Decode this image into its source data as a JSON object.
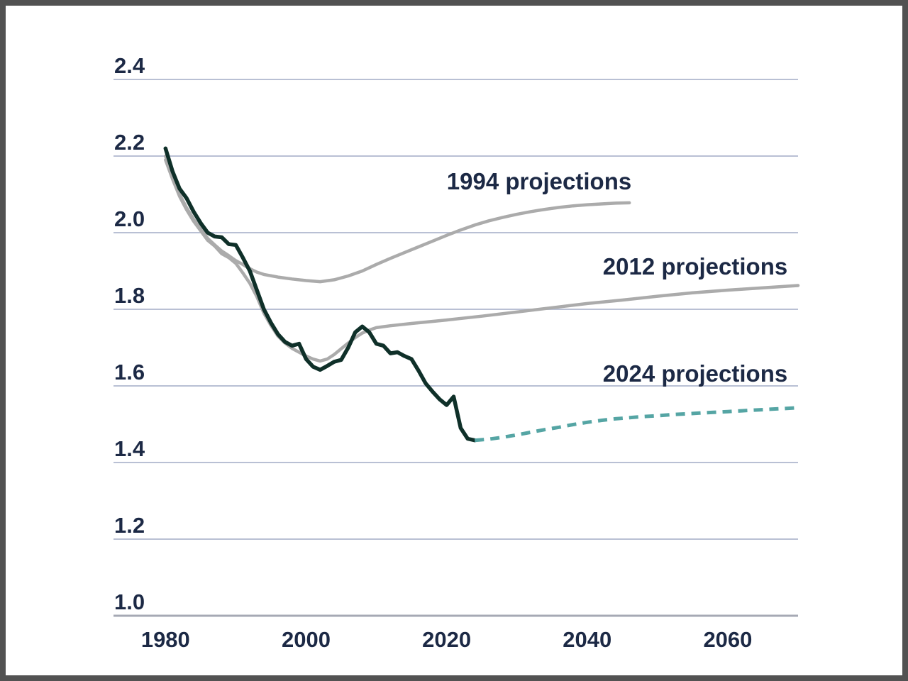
{
  "frame": {
    "border_color": "#525252",
    "background_color": "#ffffff"
  },
  "colors": {
    "text": "#1c2945",
    "gridline": "#b9c0d4",
    "axis_line": "#a6a9b4",
    "actual_line": "#0f3029",
    "projection_gray": "#ababab",
    "projection_teal": "#55a5a4"
  },
  "chart_data": {
    "type": "line",
    "title": "",
    "xlabel": "",
    "ylabel": "",
    "x_axis": {
      "tick_labels": [
        "1980",
        "2000",
        "2020",
        "2040",
        "2060"
      ],
      "tick_values": [
        1980,
        2000,
        2020,
        2040,
        2060
      ],
      "range": [
        1972.6,
        2070
      ],
      "grid": false
    },
    "y_axis": {
      "tick_labels": [
        "1.0",
        "1.2",
        "1.4",
        "1.6",
        "1.8",
        "2.0",
        "2.2",
        "2.4"
      ],
      "tick_values": [
        1.0,
        1.2,
        1.4,
        1.6,
        1.8,
        2.0,
        2.2,
        2.4
      ],
      "range": [
        1.0,
        2.4
      ],
      "grid": true
    },
    "legend_position": "inline-annotations",
    "series": [
      {
        "name": "actual",
        "label": "",
        "color": "#0f3029",
        "width": 5.5,
        "dash": "",
        "points": [
          [
            1980,
            2.22
          ],
          [
            1981,
            2.16
          ],
          [
            1982,
            2.115
          ],
          [
            1983,
            2.09
          ],
          [
            1984,
            2.055
          ],
          [
            1985,
            2.025
          ],
          [
            1986,
            2.0
          ],
          [
            1987,
            1.99
          ],
          [
            1988,
            1.988
          ],
          [
            1989,
            1.97
          ],
          [
            1990,
            1.968
          ],
          [
            1991,
            1.935
          ],
          [
            1992,
            1.9
          ],
          [
            1993,
            1.85
          ],
          [
            1994,
            1.8
          ],
          [
            1995,
            1.765
          ],
          [
            1996,
            1.735
          ],
          [
            1997,
            1.715
          ],
          [
            1998,
            1.705
          ],
          [
            1999,
            1.71
          ],
          [
            2000,
            1.67
          ],
          [
            2001,
            1.65
          ],
          [
            2002,
            1.642
          ],
          [
            2003,
            1.652
          ],
          [
            2004,
            1.663
          ],
          [
            2005,
            1.668
          ],
          [
            2006,
            1.7
          ],
          [
            2007,
            1.74
          ],
          [
            2008,
            1.755
          ],
          [
            2009,
            1.74
          ],
          [
            2010,
            1.71
          ],
          [
            2011,
            1.705
          ],
          [
            2012,
            1.685
          ],
          [
            2013,
            1.688
          ],
          [
            2014,
            1.678
          ],
          [
            2015,
            1.67
          ],
          [
            2016,
            1.64
          ],
          [
            2017,
            1.607
          ],
          [
            2018,
            1.585
          ],
          [
            2019,
            1.565
          ],
          [
            2020,
            1.55
          ],
          [
            2021,
            1.572
          ],
          [
            2022,
            1.49
          ],
          [
            2023,
            1.462
          ],
          [
            2024,
            1.458
          ]
        ]
      },
      {
        "name": "projections-1994",
        "label": "1994 projections",
        "color": "#ababab",
        "width": 4.5,
        "dash": "",
        "points": [
          [
            1980,
            2.2
          ],
          [
            1981,
            2.145
          ],
          [
            1982,
            2.1
          ],
          [
            1983,
            2.065
          ],
          [
            1984,
            2.035
          ],
          [
            1985,
            2.01
          ],
          [
            1986,
            1.985
          ],
          [
            1987,
            1.968
          ],
          [
            1988,
            1.952
          ],
          [
            1989,
            1.94
          ],
          [
            1990,
            1.927
          ],
          [
            1991,
            1.917
          ],
          [
            1992,
            1.906
          ],
          [
            1993,
            1.897
          ],
          [
            1994,
            1.891
          ],
          [
            1996,
            1.884
          ],
          [
            1998,
            1.879
          ],
          [
            2000,
            1.875
          ],
          [
            2002,
            1.872
          ],
          [
            2004,
            1.877
          ],
          [
            2006,
            1.887
          ],
          [
            2008,
            1.9
          ],
          [
            2010,
            1.917
          ],
          [
            2012,
            1.933
          ],
          [
            2014,
            1.948
          ],
          [
            2016,
            1.963
          ],
          [
            2018,
            1.978
          ],
          [
            2020,
            1.993
          ],
          [
            2022,
            2.007
          ],
          [
            2024,
            2.02
          ],
          [
            2026,
            2.031
          ],
          [
            2028,
            2.04
          ],
          [
            2030,
            2.048
          ],
          [
            2032,
            2.055
          ],
          [
            2034,
            2.061
          ],
          [
            2036,
            2.066
          ],
          [
            2038,
            2.07
          ],
          [
            2040,
            2.073
          ],
          [
            2042,
            2.075
          ],
          [
            2044,
            2.077
          ],
          [
            2046,
            2.078
          ]
        ]
      },
      {
        "name": "projections-2012",
        "label": "2012 projections",
        "color": "#ababab",
        "width": 4.5,
        "dash": "",
        "points": [
          [
            1980,
            2.19
          ],
          [
            1981,
            2.14
          ],
          [
            1982,
            2.095
          ],
          [
            1983,
            2.06
          ],
          [
            1984,
            2.03
          ],
          [
            1985,
            2.005
          ],
          [
            1986,
            1.98
          ],
          [
            1987,
            1.965
          ],
          [
            1988,
            1.945
          ],
          [
            1989,
            1.935
          ],
          [
            1990,
            1.92
          ],
          [
            1991,
            1.895
          ],
          [
            1992,
            1.868
          ],
          [
            1993,
            1.833
          ],
          [
            1994,
            1.79
          ],
          [
            1995,
            1.758
          ],
          [
            1996,
            1.73
          ],
          [
            1997,
            1.712
          ],
          [
            1998,
            1.698
          ],
          [
            1999,
            1.688
          ],
          [
            2000,
            1.678
          ],
          [
            2001,
            1.67
          ],
          [
            2002,
            1.665
          ],
          [
            2003,
            1.67
          ],
          [
            2004,
            1.682
          ],
          [
            2005,
            1.697
          ],
          [
            2006,
            1.712
          ],
          [
            2007,
            1.726
          ],
          [
            2008,
            1.738
          ],
          [
            2009,
            1.746
          ],
          [
            2010,
            1.752
          ],
          [
            2012,
            1.757
          ],
          [
            2015,
            1.763
          ],
          [
            2020,
            1.772
          ],
          [
            2025,
            1.782
          ],
          [
            2030,
            1.793
          ],
          [
            2035,
            1.804
          ],
          [
            2040,
            1.815
          ],
          [
            2045,
            1.824
          ],
          [
            2050,
            1.834
          ],
          [
            2055,
            1.843
          ],
          [
            2060,
            1.85
          ],
          [
            2065,
            1.856
          ],
          [
            2070,
            1.862
          ]
        ]
      },
      {
        "name": "projections-2024",
        "label": "2024 projections",
        "color": "#55a5a4",
        "width": 5,
        "dash": "13 9",
        "points": [
          [
            2024,
            1.458
          ],
          [
            2026,
            1.461
          ],
          [
            2028,
            1.466
          ],
          [
            2030,
            1.472
          ],
          [
            2032,
            1.479
          ],
          [
            2034,
            1.486
          ],
          [
            2036,
            1.492
          ],
          [
            2038,
            1.499
          ],
          [
            2040,
            1.505
          ],
          [
            2042,
            1.51
          ],
          [
            2044,
            1.514
          ],
          [
            2046,
            1.517
          ],
          [
            2048,
            1.52
          ],
          [
            2050,
            1.522
          ],
          [
            2052,
            1.525
          ],
          [
            2054,
            1.527
          ],
          [
            2056,
            1.529
          ],
          [
            2058,
            1.531
          ],
          [
            2060,
            1.533
          ],
          [
            2062,
            1.535
          ],
          [
            2064,
            1.537
          ],
          [
            2066,
            1.539
          ],
          [
            2068,
            1.541
          ],
          [
            2070,
            1.543
          ]
        ]
      }
    ]
  }
}
